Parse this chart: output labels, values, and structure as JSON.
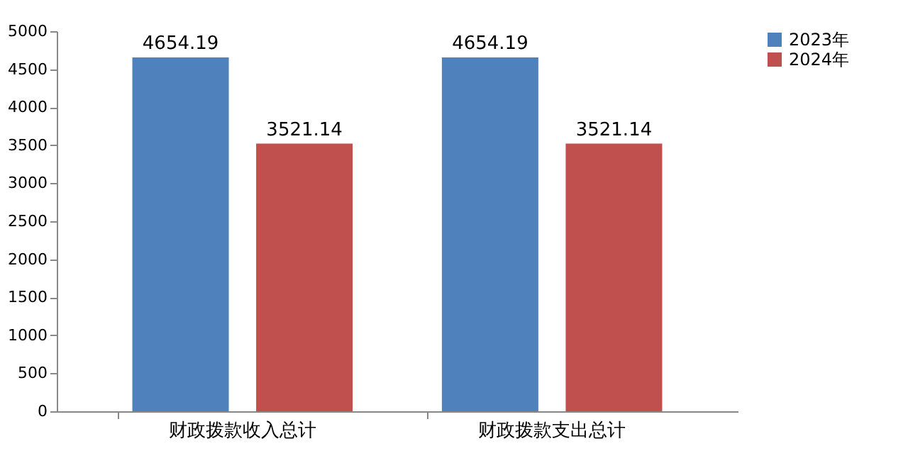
{
  "chart_data": {
    "type": "bar",
    "categories": [
      "财政拨款收入总计",
      "财政拨款支出总计"
    ],
    "series": [
      {
        "name": "2023年",
        "color": "#4f81bd",
        "values": [
          4654.19,
          4654.19
        ]
      },
      {
        "name": "2024年",
        "color": "#c0504d",
        "values": [
          3521.14,
          3521.14
        ]
      }
    ],
    "ylim": [
      0,
      5000
    ],
    "yticks": [
      0,
      500,
      1000,
      1500,
      2000,
      2500,
      3000,
      3500,
      4000,
      4500,
      5000
    ],
    "grid": false,
    "legend": "right",
    "data_labels": true
  }
}
